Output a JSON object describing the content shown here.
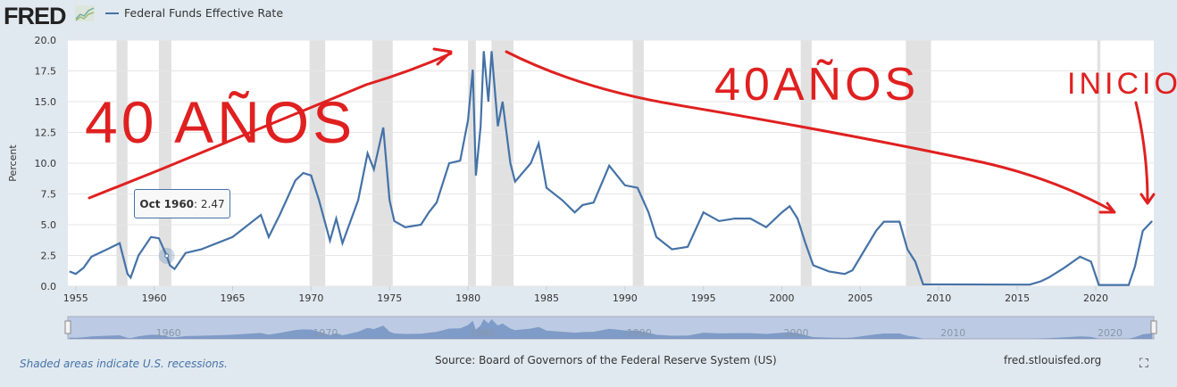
{
  "header": {
    "logo": "FRED",
    "series_legend": "Federal Funds Effective Rate"
  },
  "tooltip": {
    "date": "Oct 1960",
    "value": "2.47"
  },
  "footer": {
    "note": "Shaded areas indicate U.S. recessions.",
    "source": "Source: Board of Governors of the Federal Reserve System (US)",
    "site": "fred.stlouisfed.org"
  },
  "annotations": {
    "left": "40 AÑOS",
    "middle": "40AÑOS",
    "right": "INICIO"
  },
  "colors": {
    "line": "#4572a7",
    "recession": "#e1e1e1",
    "annotation": "#e02020"
  },
  "chart_data": {
    "type": "line",
    "title": "Federal Funds Effective Rate",
    "ylabel": "Percent",
    "xlabel": "",
    "ylim": [
      0,
      20
    ],
    "xlim": [
      1954.5,
      2023.7
    ],
    "yticks": [
      "0.0",
      "2.5",
      "5.0",
      "7.5",
      "10.0",
      "12.5",
      "15.0",
      "17.5",
      "20.0"
    ],
    "xticks": [
      "1955",
      "1960",
      "1965",
      "1970",
      "1975",
      "1980",
      "1985",
      "1990",
      "1995",
      "2000",
      "2005",
      "2010",
      "2015",
      "2020"
    ],
    "navigator_ticks": [
      "1960",
      "1970",
      "1980",
      "1990",
      "2000",
      "2010",
      "2020"
    ],
    "recessions": [
      [
        1957.6,
        1958.3
      ],
      [
        1960.3,
        1961.1
      ],
      [
        1969.9,
        1970.9
      ],
      [
        1973.9,
        1975.2
      ],
      [
        1980.0,
        1980.5
      ],
      [
        1981.5,
        1982.9
      ],
      [
        1990.5,
        1991.2
      ],
      [
        2001.2,
        2001.9
      ],
      [
        2007.9,
        2009.5
      ],
      [
        2020.1,
        2020.3
      ]
    ],
    "series": [
      {
        "name": "Federal Funds Effective Rate",
        "x": [
          1954.6,
          1955,
          1955.5,
          1956,
          1957,
          1957.8,
          1958.3,
          1958.5,
          1959,
          1959.8,
          1960.3,
          1960.8,
          1961,
          1961.3,
          1962,
          1963,
          1964,
          1965,
          1966,
          1966.8,
          1967.3,
          1968,
          1969,
          1969.5,
          1970,
          1970.5,
          1971.2,
          1971.6,
          1972,
          1973,
          1973.6,
          1974,
          1974.6,
          1975,
          1975.3,
          1976,
          1977,
          1977.5,
          1978,
          1978.8,
          1979.5,
          1980,
          1980.3,
          1980.5,
          1980.8,
          1981,
          1981.3,
          1981.5,
          1981.9,
          1982.2,
          1982.7,
          1983,
          1984,
          1984.5,
          1985,
          1986,
          1986.8,
          1987.3,
          1988,
          1989,
          1989.5,
          1990,
          1990.8,
          1991.5,
          1992,
          1993,
          1994,
          1995,
          1996,
          1997,
          1998,
          1999,
          2000,
          2000.5,
          2001,
          2001.5,
          2002,
          2003,
          2004,
          2004.5,
          2006,
          2006.5,
          2007.5,
          2008,
          2008.5,
          2009,
          2015.8,
          2016.5,
          2017,
          2018,
          2019,
          2019.7,
          2020.2,
          2022.1,
          2022.5,
          2023,
          2023.6
        ],
        "values": [
          1.2,
          1.0,
          1.5,
          2.4,
          3.0,
          3.5,
          1.0,
          0.7,
          2.5,
          4.0,
          3.9,
          2.47,
          1.7,
          1.4,
          2.7,
          3.0,
          3.5,
          4.0,
          5.0,
          5.8,
          4.0,
          5.8,
          8.6,
          9.2,
          9.0,
          7.0,
          3.7,
          5.5,
          3.5,
          7.0,
          10.8,
          9.5,
          12.9,
          7.0,
          5.3,
          4.8,
          5.0,
          6.0,
          6.8,
          10.0,
          10.2,
          13.5,
          17.6,
          9.0,
          13.0,
          19.1,
          15.0,
          19.1,
          13.0,
          15.0,
          10.0,
          8.5,
          10.0,
          11.6,
          8.0,
          7.0,
          6.0,
          6.6,
          6.8,
          9.8,
          9.0,
          8.2,
          8.0,
          6.0,
          4.0,
          3.0,
          3.2,
          6.0,
          5.3,
          5.5,
          5.5,
          4.8,
          6.0,
          6.5,
          5.5,
          3.5,
          1.7,
          1.2,
          1.0,
          1.3,
          4.5,
          5.25,
          5.25,
          3.0,
          2.0,
          0.15,
          0.13,
          0.4,
          0.7,
          1.5,
          2.4,
          2.0,
          0.1,
          0.1,
          1.6,
          4.5,
          5.3
        ]
      }
    ]
  }
}
